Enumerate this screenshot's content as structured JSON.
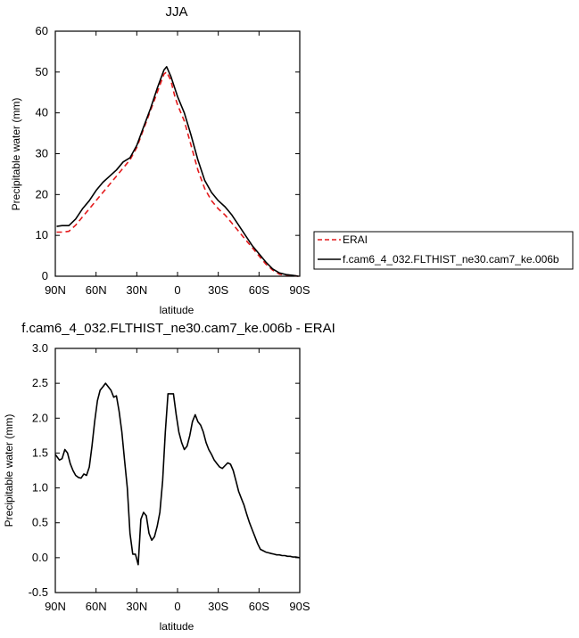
{
  "chart_data": [
    {
      "type": "line",
      "title": "JJA",
      "xlabel": "latitude",
      "ylabel": "Precipitable water (mm)",
      "xlim": [
        90,
        -90
      ],
      "ylim": [
        0,
        60
      ],
      "x_ticks": [
        90,
        60,
        30,
        0,
        -30,
        -60,
        -90
      ],
      "x_tick_labels": [
        "90N",
        "60N",
        "30N",
        "0",
        "30S",
        "60S",
        "90S"
      ],
      "y_ticks": [
        0,
        10,
        20,
        30,
        40,
        50,
        60
      ],
      "y_tick_labels": [
        "0",
        "10",
        "20",
        "30",
        "40",
        "50",
        "60"
      ],
      "legend_position": "right",
      "series": [
        {
          "name": "ERAI",
          "color": "#e41a1c",
          "style": "dashed",
          "x": [
            89,
            85,
            80,
            75,
            70,
            65,
            60,
            55,
            50,
            45,
            40,
            35,
            30,
            25,
            20,
            15,
            10,
            8,
            5,
            2,
            0,
            -5,
            -10,
            -15,
            -20,
            -25,
            -30,
            -35,
            -40,
            -45,
            -50,
            -55,
            -60,
            -65,
            -70,
            -75,
            -80,
            -85,
            -89
          ],
          "values": [
            10.8,
            10.8,
            11.0,
            12.5,
            14.5,
            16.5,
            18.5,
            20.5,
            22.5,
            24.5,
            26.5,
            28.5,
            31.5,
            36.0,
            40.5,
            45.0,
            49.5,
            50.0,
            48.0,
            44.0,
            42.0,
            38.0,
            32.0,
            26.0,
            21.5,
            18.5,
            16.5,
            15.0,
            13.0,
            11.0,
            9.0,
            7.0,
            5.0,
            3.0,
            1.5,
            0.5,
            0.3,
            0.2,
            0.0
          ]
        },
        {
          "name": "f.cam6_4_032.FLTHIST_ne30.cam7_ke.006b",
          "color": "#000000",
          "style": "solid",
          "x": [
            89,
            85,
            80,
            75,
            70,
            65,
            60,
            55,
            50,
            45,
            40,
            35,
            30,
            25,
            20,
            15,
            10,
            8,
            5,
            2,
            0,
            -5,
            -10,
            -15,
            -20,
            -25,
            -30,
            -35,
            -40,
            -45,
            -50,
            -55,
            -60,
            -65,
            -70,
            -75,
            -80,
            -85,
            -89
          ],
          "values": [
            12.2,
            12.4,
            12.4,
            14.0,
            16.5,
            18.5,
            21.0,
            23.0,
            24.5,
            26.0,
            28.0,
            29.0,
            32.0,
            36.5,
            41.0,
            46.0,
            50.5,
            51.3,
            49.0,
            46.0,
            44.0,
            40.0,
            34.5,
            28.5,
            23.5,
            20.5,
            18.5,
            17.0,
            15.0,
            12.5,
            10.0,
            7.5,
            5.5,
            3.5,
            1.8,
            0.8,
            0.4,
            0.2,
            0.0
          ]
        }
      ]
    },
    {
      "type": "line",
      "title": "f.cam6_4_032.FLTHIST_ne30.cam7_ke.006b - ERAI",
      "xlabel": "latitude",
      "ylabel": "Precipitable water (mm)",
      "xlim": [
        90,
        -90
      ],
      "ylim": [
        -0.5,
        3.0
      ],
      "x_ticks": [
        90,
        60,
        30,
        0,
        -30,
        -60,
        -90
      ],
      "x_tick_labels": [
        "90N",
        "60N",
        "30N",
        "0",
        "30S",
        "60S",
        "90S"
      ],
      "y_ticks": [
        -0.5,
        0.0,
        0.5,
        1.0,
        1.5,
        2.0,
        2.5,
        3.0
      ],
      "y_tick_labels": [
        "-0.5",
        "0.0",
        "0.5",
        "1.0",
        "1.5",
        "2.0",
        "2.5",
        "3.0"
      ],
      "series": [
        {
          "color": "#000000",
          "style": "solid",
          "x": [
            90,
            87,
            85,
            83,
            81,
            79,
            77,
            75,
            73,
            71,
            69,
            67,
            65,
            63,
            61,
            59,
            57,
            55,
            53,
            51,
            49,
            47,
            45,
            43,
            41,
            39,
            37,
            35,
            33,
            31,
            29,
            27,
            25,
            23,
            21,
            19,
            17,
            15,
            13,
            11,
            9,
            7,
            5,
            3,
            1,
            -1,
            -3,
            -5,
            -7,
            -9,
            -11,
            -13,
            -15,
            -17,
            -19,
            -21,
            -23,
            -25,
            -27,
            -29,
            -31,
            -33,
            -35,
            -37,
            -39,
            -41,
            -43,
            -45,
            -47,
            -49,
            -51,
            -53,
            -55,
            -57,
            -59,
            -61,
            -63,
            -65,
            -67,
            -69,
            -71,
            -73,
            -75,
            -77,
            -79,
            -81,
            -83,
            -85,
            -87,
            -90
          ],
          "values": [
            1.48,
            1.4,
            1.42,
            1.55,
            1.5,
            1.35,
            1.25,
            1.18,
            1.15,
            1.14,
            1.2,
            1.18,
            1.3,
            1.6,
            1.95,
            2.25,
            2.4,
            2.45,
            2.5,
            2.45,
            2.4,
            2.3,
            2.32,
            2.1,
            1.8,
            1.4,
            1.0,
            0.35,
            0.05,
            0.05,
            -0.1,
            0.55,
            0.65,
            0.6,
            0.35,
            0.25,
            0.3,
            0.45,
            0.65,
            1.1,
            1.8,
            2.35,
            2.35,
            2.35,
            2.05,
            1.8,
            1.65,
            1.55,
            1.6,
            1.75,
            1.95,
            2.05,
            1.95,
            1.9,
            1.8,
            1.65,
            1.55,
            1.48,
            1.4,
            1.35,
            1.3,
            1.28,
            1.32,
            1.36,
            1.34,
            1.25,
            1.1,
            0.95,
            0.85,
            0.75,
            0.62,
            0.5,
            0.4,
            0.3,
            0.2,
            0.12,
            0.1,
            0.08,
            0.07,
            0.06,
            0.05,
            0.04,
            0.04,
            0.03,
            0.03,
            0.02,
            0.02,
            0.01,
            0.01,
            0.0
          ]
        }
      ]
    }
  ]
}
